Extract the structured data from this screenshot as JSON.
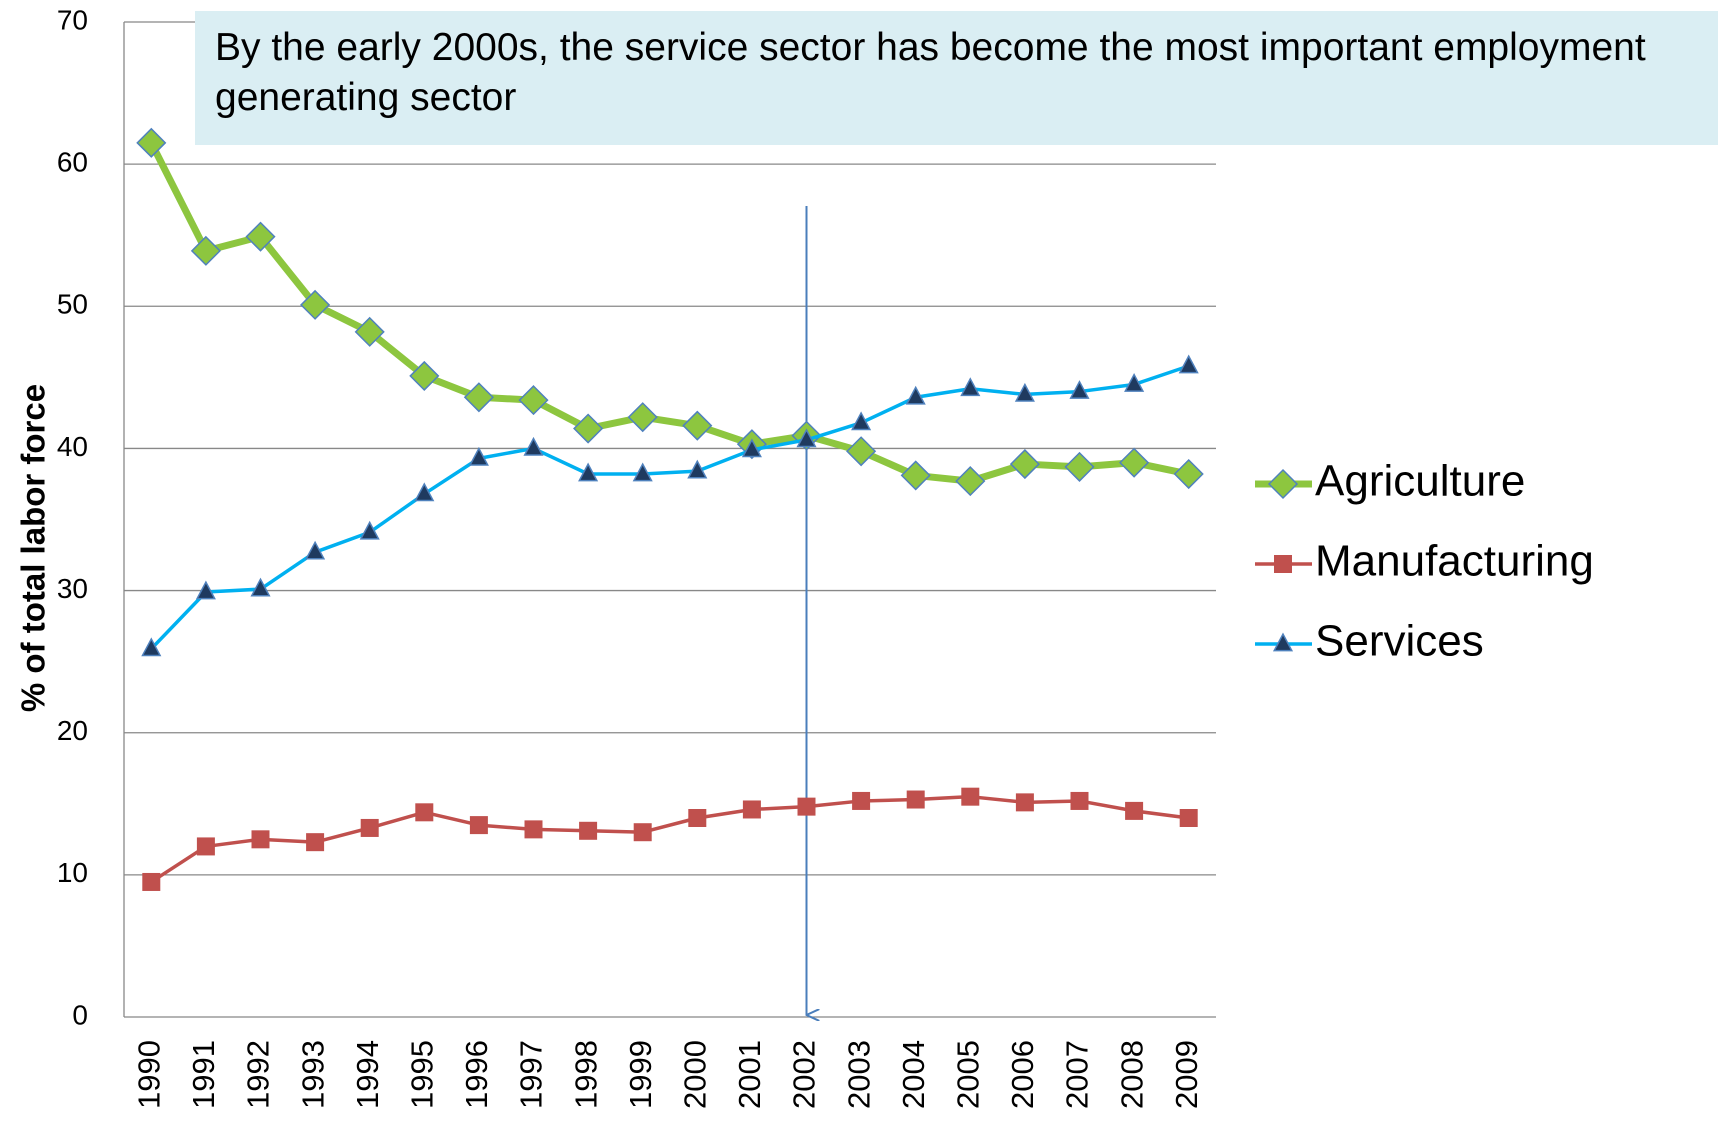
{
  "chart_data": {
    "type": "line",
    "annotation": "By the early 2000s, the service sector has become the most important employment generating sector",
    "y_label": "% of total labor force",
    "categories": [
      "1990",
      "1991",
      "1992",
      "1993",
      "1994",
      "1995",
      "1996",
      "1997",
      "1998",
      "1999",
      "2000",
      "2001",
      "2002",
      "2003",
      "2004",
      "2005",
      "2006",
      "2007",
      "2008",
      "2009"
    ],
    "series": [
      {
        "name": "Agriculture",
        "color": "#8dc63f",
        "marker": "diamond",
        "values": [
          61.5,
          53.9,
          54.9,
          50.1,
          48.2,
          45.1,
          43.6,
          43.4,
          41.4,
          42.2,
          41.6,
          40.3,
          40.9,
          39.8,
          38.1,
          37.7,
          38.9,
          38.7,
          39.0,
          38.2
        ]
      },
      {
        "name": "Manufacturing",
        "color": "#c0504d",
        "marker": "square",
        "values": [
          9.5,
          12.0,
          12.5,
          12.3,
          13.3,
          14.4,
          13.5,
          13.2,
          13.1,
          13.0,
          14.0,
          14.6,
          14.8,
          15.2,
          15.3,
          15.5,
          15.1,
          15.2,
          14.5,
          14.0
        ]
      },
      {
        "name": "Services",
        "color": "#00b0f0",
        "marker": "triangle",
        "values": [
          25.9,
          29.9,
          30.1,
          32.7,
          34.1,
          36.8,
          39.3,
          40.0,
          38.2,
          38.2,
          38.4,
          39.9,
          40.6,
          41.8,
          43.6,
          44.2,
          43.8,
          44.0,
          44.5,
          45.8
        ]
      }
    ],
    "ylim": [
      0,
      70
    ],
    "yticks": [
      0,
      10,
      20,
      30,
      40,
      50,
      60,
      70
    ],
    "grid": true,
    "legend": "right"
  }
}
